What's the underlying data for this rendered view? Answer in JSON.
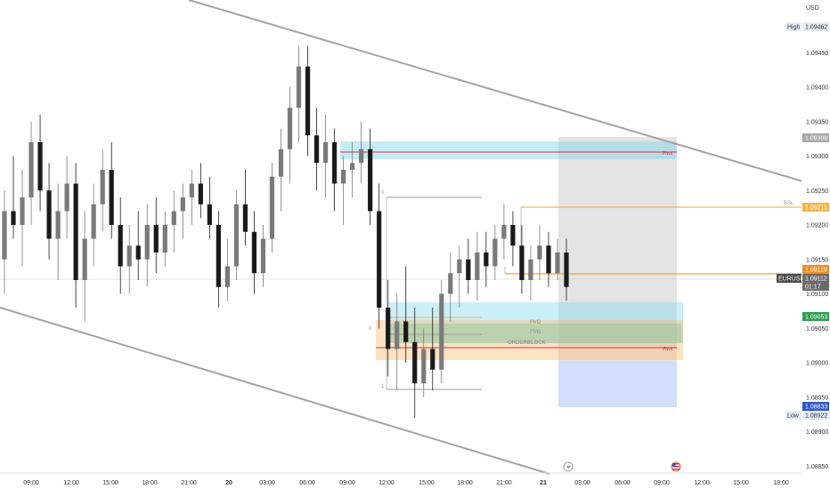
{
  "chart_data": {
    "type": "candlestick",
    "currency": "USD",
    "symbol": "EURUSD",
    "ylim": [
      1.0884,
      1.0952
    ],
    "y_ticks": [
      "1.09450",
      "1.09400",
      "1.09350",
      "1.09300",
      "1.09250",
      "1.09200",
      "1.09150",
      "1.09100",
      "1.09050",
      "1.09000",
      "1.08950",
      "1.08900",
      "1.08850"
    ],
    "x_ticks": [
      {
        "label": "09:00",
        "bold": false
      },
      {
        "label": "12:00",
        "bold": false
      },
      {
        "label": "15:00",
        "bold": false
      },
      {
        "label": "18:00",
        "bold": false
      },
      {
        "label": "21:00",
        "bold": false
      },
      {
        "label": "20",
        "bold": true
      },
      {
        "label": "03:00",
        "bold": false
      },
      {
        "label": "06:00",
        "bold": false
      },
      {
        "label": "09:00",
        "bold": false
      },
      {
        "label": "12:00",
        "bold": false
      },
      {
        "label": "15:00",
        "bold": false
      },
      {
        "label": "18:00",
        "bold": false
      },
      {
        "label": "21:00",
        "bold": false
      },
      {
        "label": "21",
        "bold": true
      },
      {
        "label": "03:00",
        "bold": false
      },
      {
        "label": "06:00",
        "bold": false
      },
      {
        "label": "09:00",
        "bold": false
      },
      {
        "label": "12:00",
        "bold": false
      },
      {
        "label": "15:00",
        "bold": false
      },
      {
        "label": "18:00",
        "bold": false
      }
    ],
    "price_labels": [
      {
        "tag": "High",
        "value": "1.09462",
        "color": "#e6ebf5",
        "text": "#333333"
      },
      {
        "tag": "",
        "value": "1.09308",
        "color": "#a9a9a9",
        "text": "#ffffff"
      },
      {
        "tag": "",
        "value": "1.09211",
        "color": "#f6b44a",
        "text": "#ffffff"
      },
      {
        "tag": "",
        "value": "1.09119",
        "color": "#f28c1e",
        "text": "#ffffff"
      },
      {
        "tag": "EURUSD",
        "value": "1.09112",
        "sub": "01:17",
        "color": "#6b6b6b",
        "text": "#ffffff"
      },
      {
        "tag": "",
        "value": "1.09053",
        "color": "#2e9e4f",
        "text": "#ffffff"
      },
      {
        "tag": "",
        "value": "1.08833",
        "color": "#2d58c8",
        "text": "#ffffff"
      },
      {
        "tag": "Low",
        "value": "1.08922",
        "color": "#e6ebf5",
        "text": "#333333"
      }
    ],
    "annotations": {
      "fib_top": "0",
      "fib_mid": "0",
      "fib_bottom": "1",
      "fvg1": "FVG",
      "fvg2": "FVG",
      "orderblock": "ORDERBLOCK",
      "pivot1": "Pivot",
      "pivot2": "Pivot",
      "bsl": "BSL"
    },
    "candles": [
      [
        1.0915,
        1.0925,
        1.091,
        1.0922
      ],
      [
        1.0922,
        1.093,
        1.0918,
        1.092
      ],
      [
        1.092,
        1.0928,
        1.0914,
        1.0924
      ],
      [
        1.0924,
        1.0935,
        1.092,
        1.0932
      ],
      [
        1.0932,
        1.0936,
        1.0922,
        1.0925
      ],
      [
        1.0925,
        1.0929,
        1.0915,
        1.0918
      ],
      [
        1.0918,
        1.0926,
        1.0912,
        1.0922
      ],
      [
        1.0922,
        1.093,
        1.0918,
        1.0926
      ],
      [
        1.0926,
        1.0929,
        1.0908,
        1.0912
      ],
      [
        1.0912,
        1.0922,
        1.0906,
        1.0918
      ],
      [
        1.0918,
        1.0926,
        1.0914,
        1.0923
      ],
      [
        1.0923,
        1.0931,
        1.0919,
        1.0928
      ],
      [
        1.0928,
        1.0932,
        1.0918,
        1.092
      ],
      [
        1.092,
        1.0924,
        1.091,
        1.0914
      ],
      [
        1.0914,
        1.092,
        1.091,
        1.0917
      ],
      [
        1.0917,
        1.0922,
        1.0912,
        1.0915
      ],
      [
        1.0915,
        1.0923,
        1.0911,
        1.092
      ],
      [
        1.092,
        1.0924,
        1.0913,
        1.0916
      ],
      [
        1.0916,
        1.0922,
        1.0914,
        1.092
      ],
      [
        1.092,
        1.0925,
        1.0916,
        1.0922
      ],
      [
        1.0922,
        1.0926,
        1.0918,
        1.0924
      ],
      [
        1.0924,
        1.0928,
        1.092,
        1.0926
      ],
      [
        1.0926,
        1.0929,
        1.0921,
        1.0923
      ],
      [
        1.0923,
        1.0927,
        1.0918,
        1.092
      ],
      [
        1.092,
        1.0922,
        1.0908,
        1.0911
      ],
      [
        1.0911,
        1.0918,
        1.0909,
        1.0914
      ],
      [
        1.0914,
        1.0925,
        1.0912,
        1.0923
      ],
      [
        1.0923,
        1.0928,
        1.0917,
        1.0919
      ],
      [
        1.0919,
        1.0922,
        1.091,
        1.0913
      ],
      [
        1.0913,
        1.092,
        1.0911,
        1.0918
      ],
      [
        1.0918,
        1.0929,
        1.0916,
        1.0927
      ],
      [
        1.0927,
        1.0934,
        1.0922,
        1.0931
      ],
      [
        1.0931,
        1.094,
        1.0926,
        1.0937
      ],
      [
        1.0937,
        1.0946,
        1.0932,
        1.0943
      ],
      [
        1.0943,
        1.0946,
        1.093,
        1.0933
      ],
      [
        1.0933,
        1.0937,
        1.0925,
        1.0929
      ],
      [
        1.0929,
        1.0936,
        1.0924,
        1.0932
      ],
      [
        1.0932,
        1.0934,
        1.0922,
        1.0926
      ],
      [
        1.0926,
        1.093,
        1.092,
        1.0928
      ],
      [
        1.0928,
        1.0932,
        1.0924,
        1.0929
      ],
      [
        1.0929,
        1.0935,
        1.0926,
        1.0931
      ],
      [
        1.0931,
        1.0934,
        1.092,
        1.0922
      ],
      [
        1.0922,
        1.0926,
        1.0905,
        1.0908
      ],
      [
        1.0908,
        1.0912,
        1.0898,
        1.0902
      ],
      [
        1.0902,
        1.091,
        1.0896,
        1.0906
      ],
      [
        1.0906,
        1.0914,
        1.09,
        1.0903
      ],
      [
        1.0903,
        1.0908,
        1.0892,
        1.0897
      ],
      [
        1.0897,
        1.0905,
        1.0895,
        1.0902
      ],
      [
        1.0902,
        1.0908,
        1.0896,
        1.0899
      ],
      [
        1.0899,
        1.0912,
        1.0897,
        1.091
      ],
      [
        1.091,
        1.0916,
        1.0906,
        1.0913
      ],
      [
        1.0913,
        1.0917,
        1.0908,
        1.0915
      ],
      [
        1.0915,
        1.0918,
        1.091,
        1.0912
      ],
      [
        1.0912,
        1.0919,
        1.0909,
        1.0916
      ],
      [
        1.0916,
        1.0919,
        1.0911,
        1.0914
      ],
      [
        1.0914,
        1.092,
        1.0912,
        1.0918
      ],
      [
        1.0918,
        1.0923,
        1.0915,
        1.092
      ],
      [
        1.092,
        1.0922,
        1.0914,
        1.0917
      ],
      [
        1.0917,
        1.092,
        1.091,
        1.0912
      ],
      [
        1.0912,
        1.0917,
        1.0909,
        1.0915
      ],
      [
        1.0915,
        1.092,
        1.0912,
        1.0917
      ],
      [
        1.0917,
        1.0919,
        1.0911,
        1.0913
      ],
      [
        1.0913,
        1.0918,
        1.0912,
        1.0916
      ],
      [
        1.0916,
        1.0918,
        1.0909,
        1.0911
      ]
    ]
  }
}
